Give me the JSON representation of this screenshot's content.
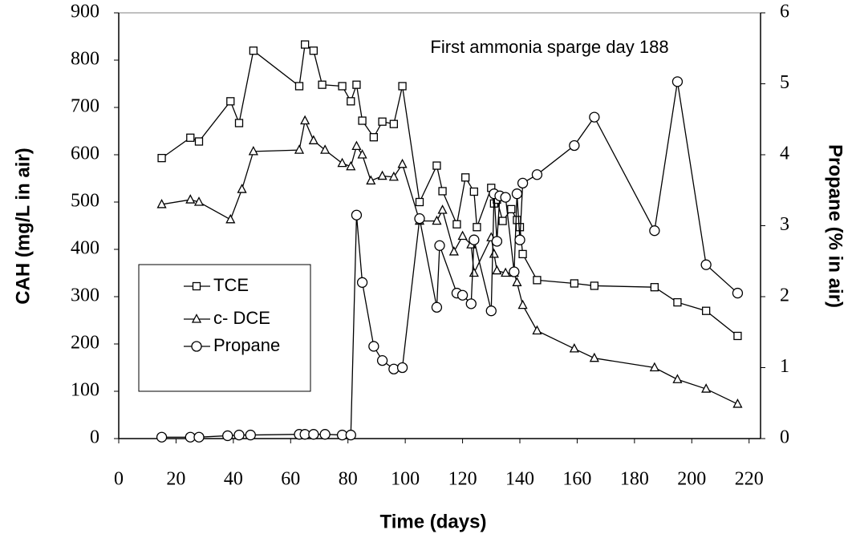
{
  "chart_data": {
    "type": "line",
    "annotation": "First ammonia sparge day 188",
    "x_label": "Time (days)",
    "y_label": "CAH (mg/L in air)",
    "y2_label": "Propane (% in air)",
    "xlim": [
      0,
      224
    ],
    "xticks": [
      0,
      20,
      40,
      60,
      80,
      100,
      120,
      140,
      160,
      180,
      200,
      220
    ],
    "ylim": [
      0,
      900
    ],
    "yticks": [
      0,
      100,
      200,
      300,
      400,
      500,
      600,
      700,
      800,
      900
    ],
    "y2lim": [
      0,
      6
    ],
    "y2ticks": [
      0,
      1,
      2,
      3,
      4,
      5,
      6
    ],
    "legend": "left",
    "series": [
      {
        "name": "TCE",
        "color": "#000000",
        "marker": "square",
        "x": [
          15,
          25,
          28,
          39,
          42,
          47,
          63,
          65,
          68,
          71,
          78,
          81,
          83,
          85,
          89,
          92,
          96,
          99,
          105,
          111,
          113,
          118,
          121,
          124,
          125,
          130,
          131,
          132,
          134,
          137,
          139,
          140,
          141,
          146,
          159,
          166,
          187,
          195,
          205,
          216
        ],
        "values": [
          593,
          636,
          628,
          713,
          667,
          820,
          745,
          833,
          820,
          748,
          745,
          713,
          748,
          672,
          637,
          670,
          665,
          745,
          500,
          577,
          523,
          453,
          552,
          522,
          447,
          530,
          497,
          505,
          460,
          485,
          462,
          447,
          390,
          335,
          328,
          323,
          320,
          288,
          270,
          217
        ]
      },
      {
        "name": "c- DCE",
        "color": "#000000",
        "marker": "triangle",
        "x": [
          15,
          25,
          28,
          39,
          43,
          47,
          63,
          65,
          68,
          72,
          78,
          81,
          83,
          85,
          88,
          92,
          96,
          99,
          105,
          111,
          113,
          117,
          120,
          123,
          124,
          130,
          131,
          132,
          135,
          138,
          139,
          141,
          146,
          159,
          166,
          187,
          195,
          205,
          216
        ],
        "values": [
          495,
          505,
          500,
          463,
          527,
          607,
          610,
          672,
          630,
          610,
          582,
          575,
          618,
          600,
          545,
          555,
          553,
          580,
          460,
          460,
          483,
          395,
          428,
          410,
          350,
          425,
          390,
          355,
          350,
          350,
          330,
          282,
          228,
          190,
          170,
          150,
          125,
          105,
          73
        ]
      },
      {
        "name": "Propane",
        "color": "#000000",
        "marker": "circle",
        "axis": "y2",
        "x": [
          15,
          25,
          28,
          38,
          42,
          46,
          63,
          65,
          68,
          72,
          78,
          81,
          83,
          85,
          89,
          92,
          96,
          99,
          105,
          111,
          112,
          118,
          120,
          123,
          124,
          130,
          131,
          132,
          133,
          135,
          138,
          139,
          140,
          141,
          146,
          159,
          166,
          187,
          195,
          205,
          216
        ],
        "values": [
          0.02,
          0.02,
          0.02,
          0.04,
          0.05,
          0.05,
          0.06,
          0.06,
          0.06,
          0.06,
          0.05,
          0.05,
          3.15,
          2.2,
          1.3,
          1.1,
          0.98,
          1.0,
          3.1,
          1.85,
          2.72,
          2.05,
          2.02,
          1.9,
          2.8,
          1.8,
          3.45,
          2.78,
          3.42,
          3.4,
          2.35,
          3.45,
          2.8,
          3.6,
          3.72,
          4.13,
          4.53,
          2.93,
          5.03,
          2.45,
          2.05
        ]
      }
    ]
  }
}
